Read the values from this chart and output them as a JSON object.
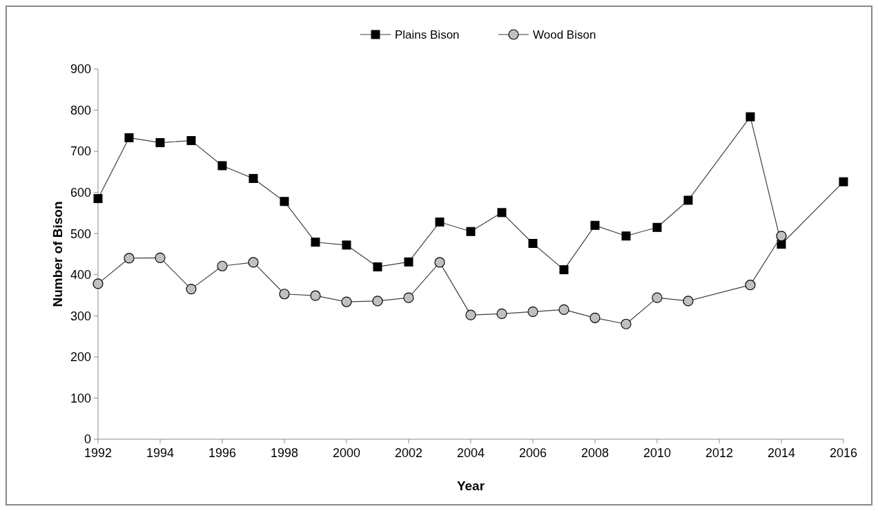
{
  "chart_data": {
    "type": "line",
    "xlabel": "Year",
    "ylabel": "Number of Bison",
    "xlim": [
      1992,
      2016
    ],
    "xticks": [
      1992,
      1994,
      1996,
      1998,
      2000,
      2002,
      2004,
      2006,
      2008,
      2010,
      2012,
      2014,
      2016
    ],
    "ylim": [
      0,
      900
    ],
    "yticks": [
      0,
      100,
      200,
      300,
      400,
      500,
      600,
      700,
      800,
      900
    ],
    "grid": false,
    "legend": "top",
    "line_style": "solid",
    "series": [
      {
        "name": "Plains Bison",
        "color": "#000000",
        "marker": "square",
        "x": [
          1992,
          1993,
          1994,
          1995,
          1996,
          1997,
          1998,
          1999,
          2000,
          2001,
          2002,
          2003,
          2004,
          2005,
          2006,
          2007,
          2008,
          2009,
          2010,
          2011,
          2013,
          2014,
          2016
        ],
        "values": [
          585,
          733,
          721,
          726,
          665,
          634,
          578,
          479,
          472,
          419,
          431,
          528,
          505,
          551,
          476,
          412,
          520,
          494,
          515,
          581,
          784,
          474,
          626
        ]
      },
      {
        "name": "Wood Bison",
        "color": "#c0c0c0",
        "marker": "circle",
        "x": [
          1992,
          1993,
          1994,
          1995,
          1996,
          1997,
          1998,
          1999,
          2000,
          2001,
          2002,
          2003,
          2004,
          2005,
          2006,
          2007,
          2008,
          2009,
          2010,
          2011,
          2013,
          2014
        ],
        "values": [
          378,
          440,
          441,
          365,
          421,
          430,
          353,
          349,
          334,
          336,
          344,
          430,
          302,
          305,
          310,
          315,
          295,
          280,
          344,
          336,
          375,
          494
        ]
      }
    ]
  }
}
